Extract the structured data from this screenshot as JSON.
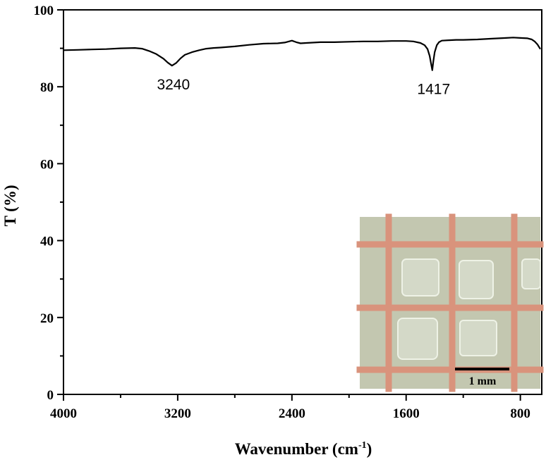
{
  "chart_data": {
    "type": "line",
    "title": "",
    "xlabel": "Wavenumber (cm",
    "xlabel_sup": "-1",
    "xlabel_end": ")",
    "ylabel": "T (%)",
    "xlim": [
      4000,
      650
    ],
    "ylim": [
      0,
      100
    ],
    "x_reversed": true,
    "x_ticks": [
      4000,
      3200,
      2400,
      1600,
      800
    ],
    "y_ticks": [
      0,
      20,
      40,
      60,
      80,
      100
    ],
    "grid": false,
    "series": [
      {
        "color": "#000000",
        "x": [
          4000,
          3900,
          3800,
          3700,
          3600,
          3500,
          3450,
          3400,
          3350,
          3300,
          3270,
          3240,
          3210,
          3180,
          3150,
          3100,
          3050,
          3000,
          2950,
          2900,
          2800,
          2700,
          2600,
          2500,
          2450,
          2400,
          2370,
          2340,
          2300,
          2200,
          2100,
          2000,
          1900,
          1800,
          1700,
          1600,
          1550,
          1500,
          1470,
          1450,
          1435,
          1425,
          1417,
          1410,
          1400,
          1385,
          1370,
          1350,
          1300,
          1250,
          1200,
          1100,
          1000,
          900,
          850,
          800,
          750,
          720,
          700,
          680,
          660
        ],
        "values": [
          89.5,
          89.6,
          89.7,
          89.8,
          90.0,
          90.1,
          89.9,
          89.3,
          88.5,
          87.3,
          86.3,
          85.5,
          86.2,
          87.4,
          88.3,
          89.0,
          89.5,
          89.9,
          90.1,
          90.2,
          90.5,
          90.9,
          91.2,
          91.3,
          91.5,
          92.0,
          91.6,
          91.3,
          91.4,
          91.6,
          91.6,
          91.7,
          91.8,
          91.8,
          91.9,
          91.9,
          91.8,
          91.4,
          90.8,
          89.8,
          88.0,
          86.0,
          84.3,
          86.5,
          89.0,
          90.8,
          91.6,
          92.0,
          92.1,
          92.2,
          92.2,
          92.3,
          92.5,
          92.7,
          92.8,
          92.7,
          92.6,
          92.3,
          91.8,
          91.0,
          89.8
        ]
      }
    ],
    "annotations": [
      {
        "text": "3240",
        "x": 3240,
        "y": 85.5
      },
      {
        "text": "1417",
        "x": 1417,
        "y": 84.3
      }
    ]
  },
  "inset": {
    "description_kind": "photograph",
    "scale_bar_label": "1 mm"
  }
}
